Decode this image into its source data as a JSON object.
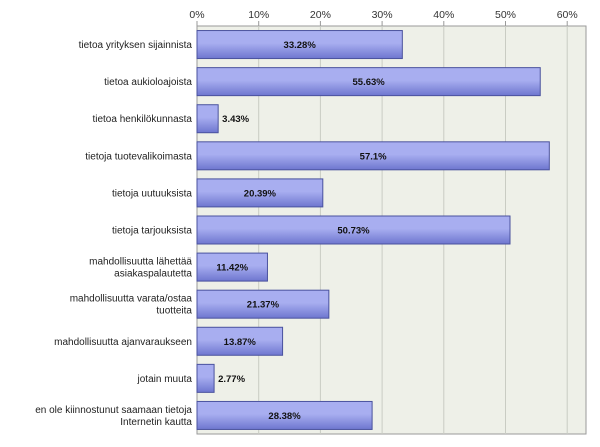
{
  "chart_data": {
    "type": "bar",
    "orientation": "horizontal",
    "title": "",
    "xlabel": "",
    "ylabel": "",
    "xlim": [
      0,
      63
    ],
    "x_ticks": [
      "0%",
      "10%",
      "20%",
      "30%",
      "40%",
      "50%",
      "60%"
    ],
    "x_tick_values": [
      0,
      10,
      20,
      30,
      40,
      50,
      60
    ],
    "x_axis_position": "top",
    "grid": true,
    "categories": [
      [
        "tietoa yrityksen sijainnista"
      ],
      [
        "tietoa aukioloajoista"
      ],
      [
        "tietoa henkilökunnasta"
      ],
      [
        "tietoja tuotevalikoimasta"
      ],
      [
        "tietoja uutuuksista"
      ],
      [
        "tietoja tarjouksista"
      ],
      [
        "mahdollisuutta lähettää",
        "asiakaspalautetta"
      ],
      [
        "mahdollisuutta varata/ostaa",
        "tuotteita"
      ],
      [
        "mahdollisuutta ajanvaraukseen"
      ],
      [
        "jotain muuta"
      ],
      [
        "en ole kiinnostunut saamaan tietoja",
        "Internetin kautta"
      ]
    ],
    "values": [
      33.28,
      55.63,
      3.43,
      57.1,
      20.39,
      50.73,
      11.42,
      21.37,
      13.87,
      2.77,
      28.38
    ],
    "data_labels": [
      "33.28%",
      "55.63%",
      "3.43%",
      "57.1%",
      "20.39%",
      "50.73%",
      "11.42%",
      "21.37%",
      "13.87%",
      "2.77%",
      "28.38%"
    ],
    "colors": {
      "bar_fill_top": "#a8aef0",
      "bar_fill_bottom": "#6e76cf",
      "bar_stroke": "#4a529e",
      "plot_bg": "#eef0e8",
      "grid": "#c9ccc3",
      "axis": "#9a9a9a"
    }
  }
}
